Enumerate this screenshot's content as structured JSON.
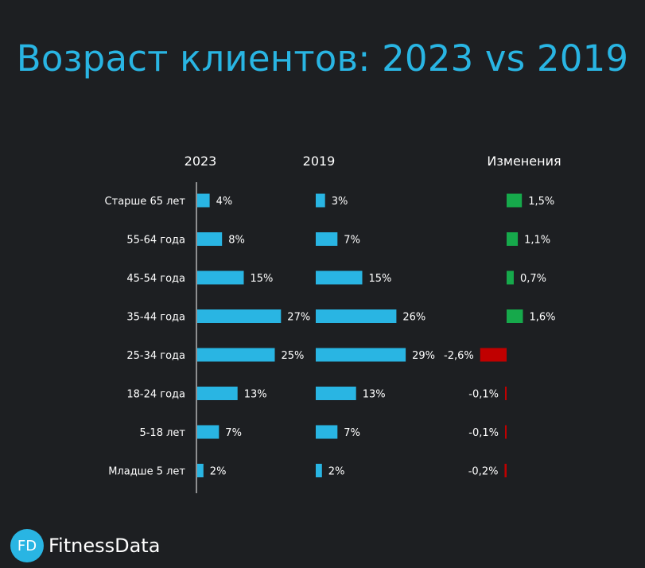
{
  "title": "Возраст клиентов: 2023 vs 2019",
  "logo": {
    "badge": "FD",
    "name": "FitnessData"
  },
  "colors": {
    "bar": "#29b5e3",
    "positive": "#16a94b",
    "negative": "#c00000",
    "title": "#29b5e3",
    "background": "#1d1f22"
  },
  "chart_data": {
    "type": "bar",
    "orientation": "horizontal",
    "categories": [
      "Старше 65 лет",
      "55-64 года",
      "45-54 года",
      "35-44 года",
      "25-34 года",
      "18-24 года",
      "5-18 лет",
      "Младше 5 лет"
    ],
    "series": [
      {
        "name": "2023",
        "values": [
          4,
          8,
          15,
          27,
          25,
          13,
          7,
          2
        ],
        "labels": [
          "4%",
          "8%",
          "15%",
          "27%",
          "25%",
          "13%",
          "7%",
          "2%"
        ]
      },
      {
        "name": "2019",
        "values": [
          3,
          7,
          15,
          26,
          29,
          13,
          7,
          2
        ],
        "labels": [
          "3%",
          "7%",
          "15%",
          "26%",
          "29%",
          "13%",
          "7%",
          "2%"
        ]
      },
      {
        "name": "Изменения",
        "values": [
          1.5,
          1.1,
          0.7,
          1.6,
          -2.6,
          -0.1,
          -0.1,
          -0.2
        ],
        "labels": [
          "1,5%",
          "1,1%",
          "0,7%",
          "1,6%",
          "-2,6%",
          "-0,1%",
          "-0,1%",
          "-0,2%"
        ]
      }
    ],
    "grid": false,
    "legend": "none"
  }
}
